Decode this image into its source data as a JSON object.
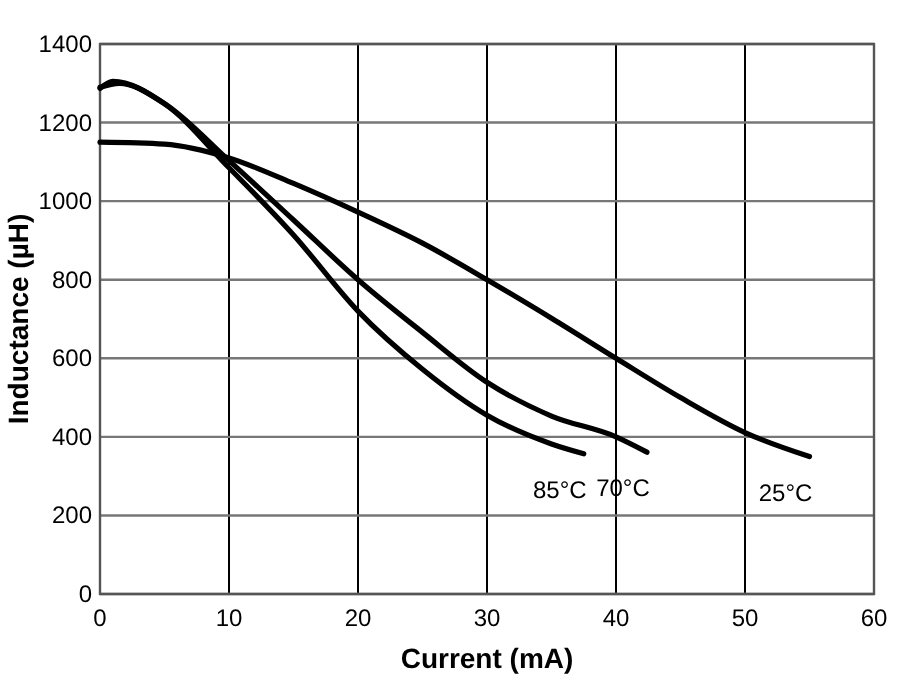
{
  "chart_data": {
    "type": "line",
    "xlabel": "Current (mA)",
    "ylabel": "Inductance (µH)",
    "xlim": [
      0,
      60
    ],
    "ylim": [
      0,
      1400
    ],
    "xticks": [
      0,
      10,
      20,
      30,
      40,
      50,
      60
    ],
    "yticks": [
      0,
      200,
      400,
      600,
      800,
      1000,
      1200,
      1400
    ],
    "grid": true,
    "line_style": "solid",
    "series": [
      {
        "name": "25°C",
        "color": "#000000",
        "x": [
          0,
          5,
          10,
          15,
          20,
          25,
          30,
          35,
          40,
          45,
          50,
          55
        ],
        "values": [
          1150,
          1145,
          1110,
          1045,
          972,
          893,
          800,
          702,
          600,
          500,
          411,
          350
        ]
      },
      {
        "name": "70°C",
        "color": "#000000",
        "x": [
          0,
          1.5,
          5,
          10,
          15,
          20,
          25,
          30,
          35,
          40,
          42.4
        ],
        "values": [
          1290,
          1300,
          1248,
          1103,
          952,
          800,
          666,
          539,
          453,
          400,
          361
        ]
      },
      {
        "name": "85°C",
        "color": "#000000",
        "x": [
          0,
          1,
          5,
          10,
          15,
          20,
          25,
          30,
          35,
          37.5
        ],
        "values": [
          1287,
          1305,
          1248,
          1085,
          914,
          720,
          572,
          455,
          382,
          357
        ]
      }
    ]
  }
}
